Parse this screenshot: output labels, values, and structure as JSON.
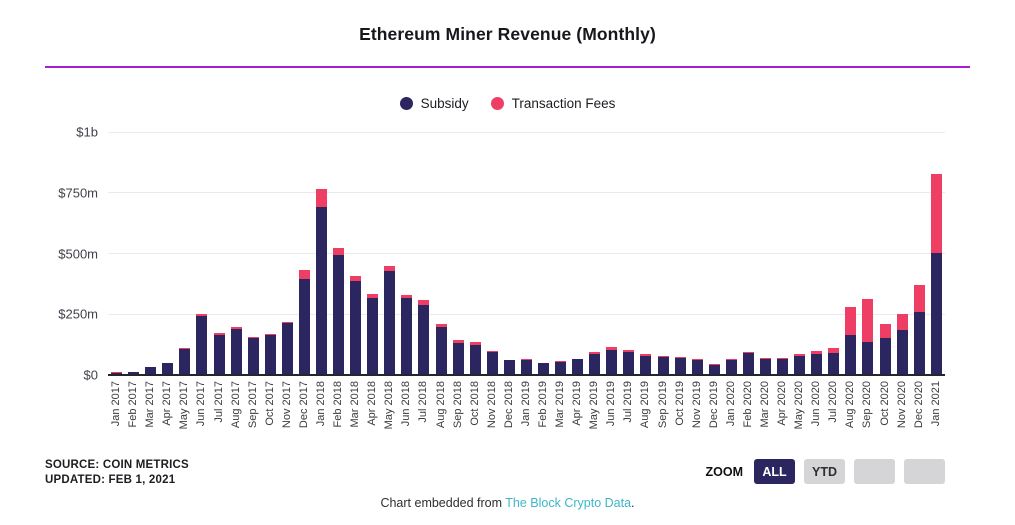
{
  "title": "Ethereum Miner Revenue (Monthly)",
  "legend": {
    "subsidy_label": "Subsidy",
    "fees_label": "Transaction Fees"
  },
  "colors": {
    "subsidy": "#2b265f",
    "fees": "#ef3e63",
    "divider": "#a21fd6",
    "link": "#3cb7c9",
    "active_button_bg": "#2b265f",
    "inactive_button_bg": "#d5d5d7"
  },
  "y_axis": {
    "ticks": [
      "$1b",
      "$750m",
      "$500m",
      "$250m",
      "$0"
    ]
  },
  "source": {
    "line1": "SOURCE: COIN METRICS",
    "line2": "UPDATED: FEB 1, 2021"
  },
  "zoom_controls": {
    "label": "ZOOM",
    "buttons": [
      {
        "label": "ALL",
        "active": true
      },
      {
        "label": "YTD",
        "active": false
      },
      {
        "label": "",
        "active": false
      },
      {
        "label": "",
        "active": false
      }
    ]
  },
  "footer": {
    "prefix": "Chart embedded from ",
    "link_text": "The Block Crypto Data",
    "suffix": "."
  },
  "chart_data": {
    "type": "bar",
    "stacked": true,
    "unit": "$m",
    "ylim": [
      0,
      1000
    ],
    "grid": true,
    "legend_position": "top-center",
    "categories": [
      "Jan 2017",
      "Feb 2017",
      "Mar 2017",
      "Apr 2017",
      "May 2017",
      "Jun 2017",
      "Jul 2017",
      "Aug 2017",
      "Sep 2017",
      "Oct 2017",
      "Nov 2017",
      "Dec 2017",
      "Jan 2018",
      "Feb 2018",
      "Mar 2018",
      "Apr 2018",
      "May 2018",
      "Jun 2018",
      "Jul 2018",
      "Aug 2018",
      "Sep 2018",
      "Oct 2018",
      "Nov 2018",
      "Dec 2018",
      "Jan 2019",
      "Feb 2019",
      "Mar 2019",
      "Apr 2019",
      "May 2019",
      "Jun 2019",
      "Jul 2019",
      "Aug 2019",
      "Sep 2019",
      "Oct 2019",
      "Nov 2019",
      "Dec 2019",
      "Jan 2020",
      "Feb 2020",
      "Mar 2020",
      "Apr 2020",
      "May 2020",
      "Jun 2020",
      "Jul 2020",
      "Aug 2020",
      "Sep 2020",
      "Oct 2020",
      "Nov 2020",
      "Dec 2020",
      "Jan 2021"
    ],
    "series": [
      {
        "name": "Subsidy",
        "color": "#2b265f",
        "values": [
          10,
          13,
          33,
          48,
          106,
          244,
          166,
          191,
          153,
          166,
          214,
          396,
          690,
          493,
          385,
          318,
          426,
          316,
          288,
          199,
          132,
          124,
          95,
          60,
          62,
          48,
          53,
          64,
          85,
          104,
          93,
          80,
          74,
          69,
          61,
          43,
          61,
          90,
          67,
          65,
          77,
          88,
          92,
          165,
          137,
          151,
          186,
          258,
          501
        ]
      },
      {
        "name": "Transaction Fees",
        "color": "#ef3e63",
        "values": [
          0.5,
          0.5,
          1,
          2,
          4,
          6,
          5,
          5,
          4,
          4,
          6,
          37,
          75,
          31,
          23,
          14,
          24,
          15,
          22,
          12,
          11,
          11,
          5,
          3,
          3,
          3,
          3,
          3,
          8,
          11,
          9,
          6,
          5,
          5,
          4,
          3,
          4,
          5,
          5,
          4,
          8,
          11,
          21,
          116,
          176,
          61,
          67,
          111,
          328
        ]
      }
    ]
  }
}
